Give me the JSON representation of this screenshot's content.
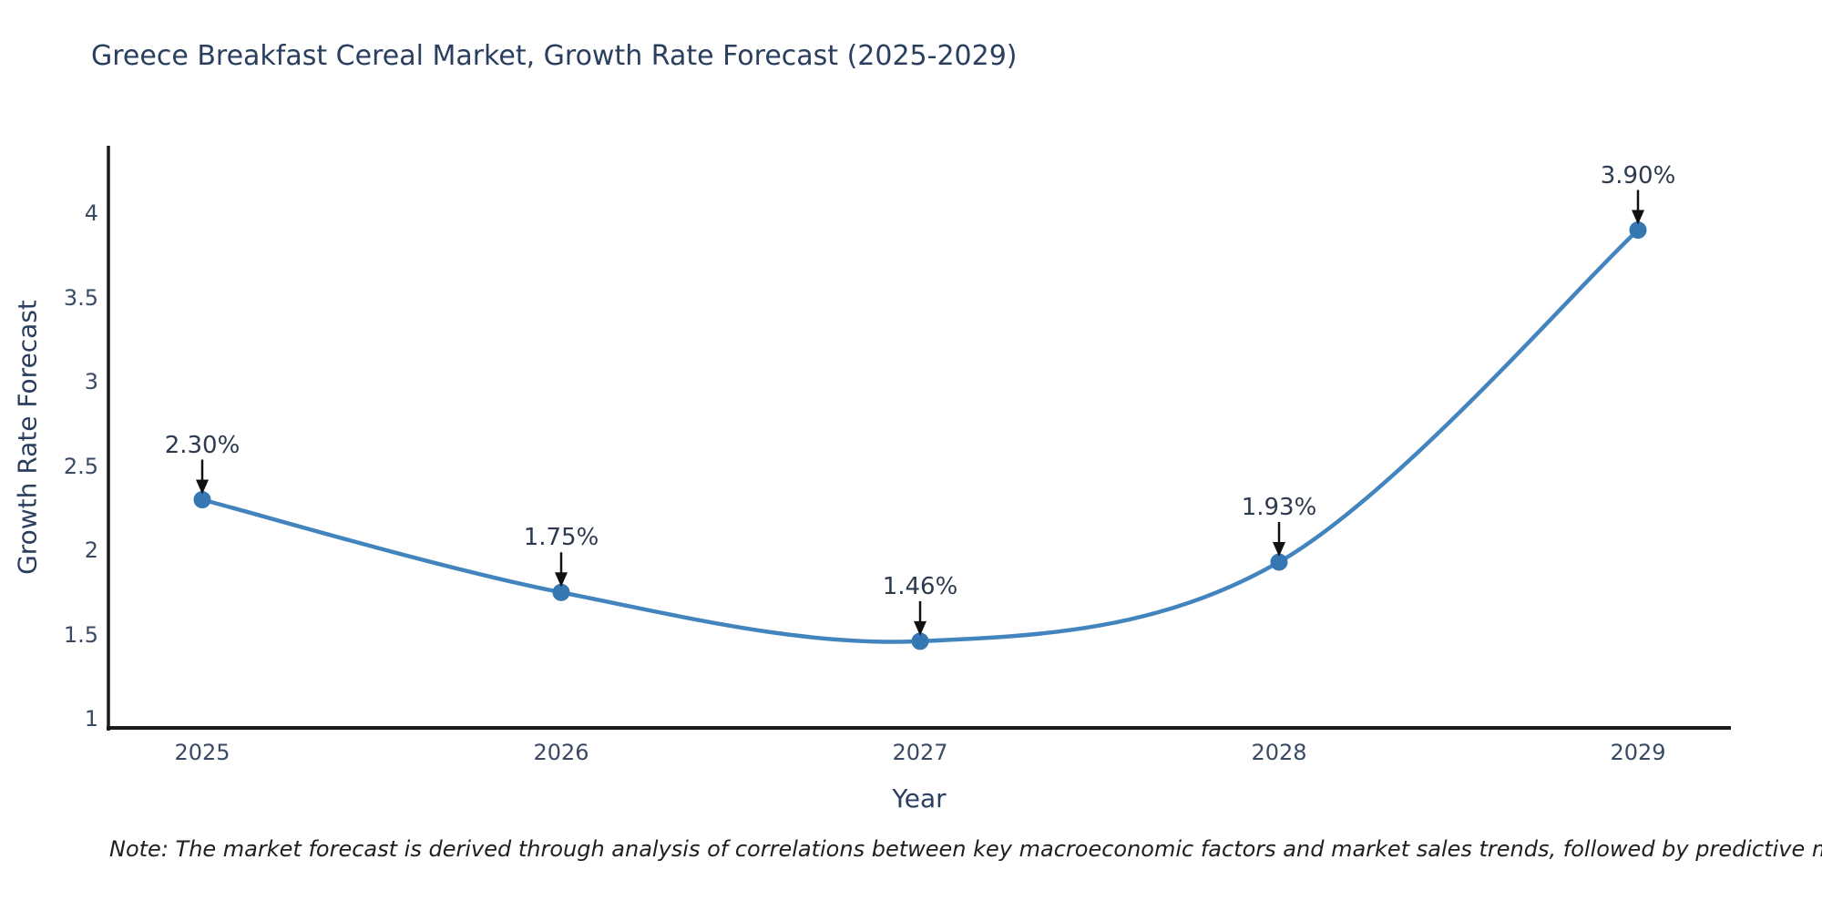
{
  "title": "Greece Breakfast Cereal Market, Growth Rate Forecast (2025-2029)",
  "note": "Note: The market forecast is derived through analysis of correlations between key macroeconomic factors and market sales trends, followed by predictive modeling to project future sales",
  "chart_data": {
    "type": "line",
    "line_shape": "spline",
    "x": [
      2025,
      2026,
      2027,
      2028,
      2029
    ],
    "values": [
      2.3,
      1.75,
      1.46,
      1.93,
      3.9
    ],
    "point_labels": [
      "2.30%",
      "1.75%",
      "1.46%",
      "1.93%",
      "3.90%"
    ],
    "x_tick_labels": [
      "2025",
      "2026",
      "2027",
      "2028",
      "2029"
    ],
    "y_tick_values": [
      1,
      1.5,
      2,
      2.5,
      3,
      3.5,
      4
    ],
    "y_tick_labels": [
      "1",
      "1.5",
      "2",
      "2.5",
      "3",
      "3.5",
      "4"
    ],
    "xlabel": "Year",
    "ylabel": "Growth Rate Forecast",
    "ylim": [
      0.95,
      4.4
    ],
    "grid": "off",
    "legend": "none",
    "markers": "on",
    "annotations": "value labels with down arrows above each point",
    "colors": {
      "line": "#4285be",
      "marker": "#3577b3",
      "axis_line": "#1a1a1a",
      "arrow": "#111111",
      "title_text": "#2a3f5f",
      "tick_text": "#3b4a63",
      "annotation_text": "#2d3a4e",
      "note_text": "#1f1f1f",
      "background": "#ffffff"
    }
  }
}
